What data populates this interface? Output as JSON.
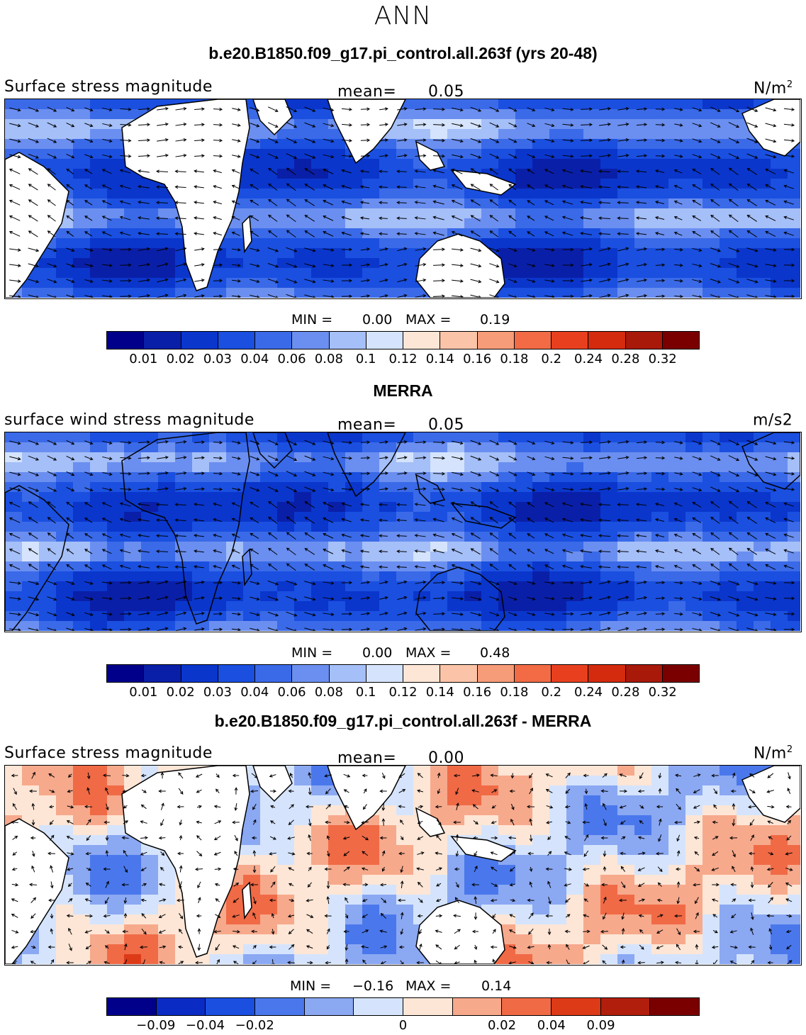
{
  "supertitle": "ANN",
  "panels": [
    {
      "title": "b.e20.B1850.f09_g17.pi_control.all.263f (yrs 20-48)",
      "left_label": "Surface stress magnitude",
      "mean_label": "mean=",
      "mean_value": "0.05",
      "units": "N/m",
      "units_sup": "2",
      "min_label": "MIN =",
      "min_value": "0.00",
      "max_label": "MAX =",
      "max_value": "0.19",
      "colorbar_ticks": [
        "0.01",
        "0.02",
        "0.03",
        "0.04",
        "0.06",
        "0.08",
        "0.1",
        "0.12",
        "0.14",
        "0.16",
        "0.18",
        "0.2",
        "0.24",
        "0.28",
        "0.32"
      ]
    },
    {
      "title": "MERRA",
      "left_label": "surface wind stress magnitude",
      "mean_label": "mean=",
      "mean_value": "0.05",
      "units": "m/s2",
      "units_sup": "",
      "min_label": "MIN =",
      "min_value": "0.00",
      "max_label": "MAX =",
      "max_value": "0.48",
      "colorbar_ticks": [
        "0.01",
        "0.02",
        "0.03",
        "0.04",
        "0.06",
        "0.08",
        "0.1",
        "0.12",
        "0.14",
        "0.16",
        "0.18",
        "0.2",
        "0.24",
        "0.28",
        "0.32"
      ]
    },
    {
      "title": "b.e20.B1850.f09_g17.pi_control.all.263f - MERRA",
      "left_label": "Surface stress magnitude",
      "mean_label": "mean=",
      "mean_value": "0.00",
      "units": "N/m",
      "units_sup": "2",
      "min_label": "MIN =",
      "min_value": "−0.16",
      "max_label": "MAX =",
      "max_value": "0.14",
      "colorbar_ticks": [
        "−0.09",
        "−0.04",
        "−0.02",
        "0",
        "0.02",
        "0.04",
        "0.09"
      ]
    }
  ],
  "colors": {
    "seq": [
      "#00008b",
      "#0a1fa8",
      "#0a36cc",
      "#1a4fe0",
      "#3a6ae8",
      "#6b8ff0",
      "#a5bff8",
      "#d5e4fc",
      "#fde6d6",
      "#fbc4a8",
      "#f79c78",
      "#f26b45",
      "#e8401f",
      "#d42a0e",
      "#a8190a",
      "#7a0000"
    ],
    "div": [
      "#00008b",
      "#0a2cc4",
      "#1a4fe0",
      "#4a78ec",
      "#8ba8f2",
      "#d5e4fc",
      "#fde6d6",
      "#f7a98c",
      "#f06a46",
      "#dd3a18",
      "#b21e0c",
      "#7a0000"
    ],
    "land": "#ffffff",
    "coast": "#000000"
  }
}
